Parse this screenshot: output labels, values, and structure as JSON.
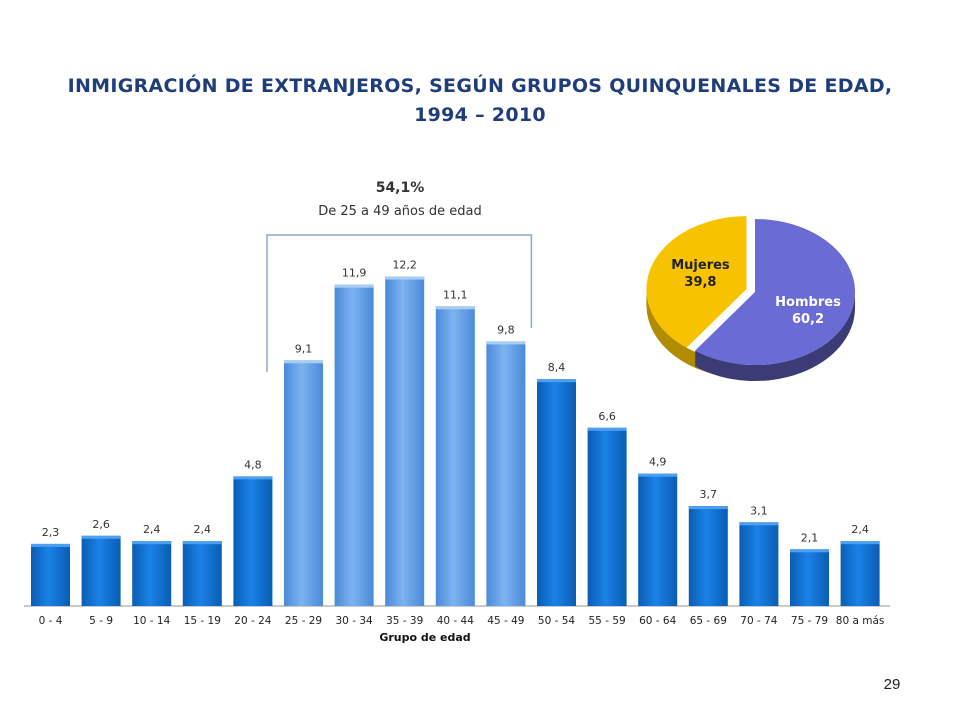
{
  "title_line1": "INMIGRACIÓN DE EXTRANJEROS, SEGÚN GRUPOS QUINQUENALES DE EDAD,",
  "title_line2": "1994 – 2010",
  "page_number": "29",
  "chart_data": [
    {
      "type": "bar",
      "xlabel": "Grupo de edad",
      "ylabel": "",
      "categories": [
        "0 - 4",
        "5 - 9",
        "10 - 14",
        "15 - 19",
        "20 - 24",
        "25 - 29",
        "30 - 34",
        "35 - 39",
        "40 - 44",
        "45 - 49",
        "50 - 54",
        "55 - 59",
        "60 - 64",
        "65 - 69",
        "70 - 74",
        "75 - 79",
        "80 a más"
      ],
      "values": [
        2.3,
        2.6,
        2.4,
        2.4,
        4.8,
        9.1,
        11.9,
        12.2,
        11.1,
        9.8,
        8.4,
        6.6,
        4.9,
        3.7,
        3.1,
        2.1,
        2.4
      ],
      "value_labels": [
        "2,3",
        "2,6",
        "2,4",
        "2,4",
        "4,8",
        "9,1",
        "11,9",
        "12,2",
        "11,1",
        "9,8",
        "8,4",
        "6,6",
        "4,9",
        "3,7",
        "3,1",
        "2,1",
        "2,4"
      ],
      "highlight_range": [
        5,
        9
      ],
      "annotation": {
        "value": "54,1%",
        "text": "De 25 a 49 años de edad"
      },
      "colors": {
        "bar": "#0d6fd0",
        "bar_highlight": "#5b9be3",
        "bracket": "#8ea9cc"
      }
    },
    {
      "type": "pie",
      "slices": [
        {
          "label": "Hombres",
          "value": 60.2,
          "value_label": "60,2",
          "color": "#6b6bd6"
        },
        {
          "label": "Mujeres",
          "value": 39.8,
          "value_label": "39,8",
          "color": "#f7c200"
        }
      ]
    }
  ]
}
